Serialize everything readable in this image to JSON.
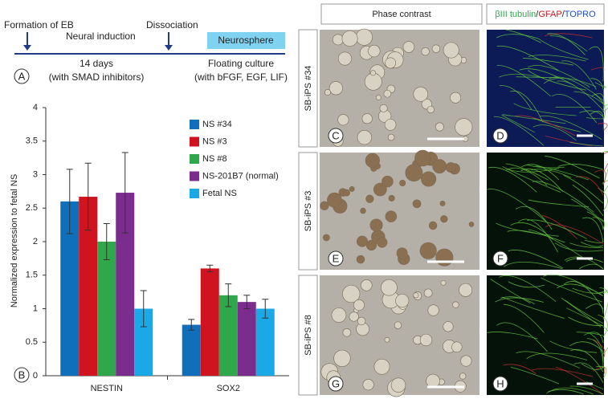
{
  "chart_data": {
    "type": "bar",
    "y_label": "Normalized expression to fetal NS",
    "categories": [
      "NESTIN",
      "SOX2"
    ],
    "series": [
      {
        "name": "NS #34",
        "color": "#0f6fba",
        "values": [
          2.6,
          0.76
        ],
        "errors": [
          0.48,
          0.08
        ]
      },
      {
        "name": "NS #3",
        "color": "#d0141f",
        "values": [
          2.67,
          1.6
        ],
        "errors": [
          0.5,
          0.05
        ]
      },
      {
        "name": "NS #8",
        "color": "#2ea84a",
        "values": [
          2.0,
          1.2
        ],
        "errors": [
          0.27,
          0.17
        ]
      },
      {
        "name": "NS-201B7 (normal)",
        "color": "#7b2d8e",
        "values": [
          2.73,
          1.1
        ],
        "errors": [
          0.6,
          0.1
        ]
      },
      {
        "name": "Fetal NS",
        "color": "#1aa9e6",
        "values": [
          1.0,
          1.0
        ],
        "errors": [
          0.27,
          0.14
        ]
      }
    ],
    "ylim": [
      0,
      4
    ],
    "yticks": [
      0,
      0.5,
      1,
      1.5,
      2,
      2.5,
      3,
      3.5,
      4
    ],
    "grid": false,
    "legend": "upper right"
  },
  "timeline": {
    "formation": "Formation of EB",
    "induction": "Neural induction",
    "dissociation": "Dissociation",
    "neurosphere": "Neurosphere",
    "duration": "14 days",
    "induction_note": "(with SMAD inhibitors)",
    "culture": "Floating culture",
    "culture_note": "(with bFGF, EGF, LIF)"
  },
  "panel_labels": [
    "A",
    "B"
  ],
  "image_grid": {
    "phase_header": "Phase contrast",
    "stain": [
      "βIII tubulin",
      "/",
      "GFAP",
      "/",
      "TOPRO"
    ],
    "rows": [
      {
        "label": "SB-iPS #34",
        "panels": [
          "C",
          "D"
        ]
      },
      {
        "label": "SB-iPS #3",
        "panels": [
          "E",
          "F"
        ]
      },
      {
        "label": "SB-iPS #8",
        "panels": [
          "G",
          "H"
        ]
      }
    ]
  }
}
